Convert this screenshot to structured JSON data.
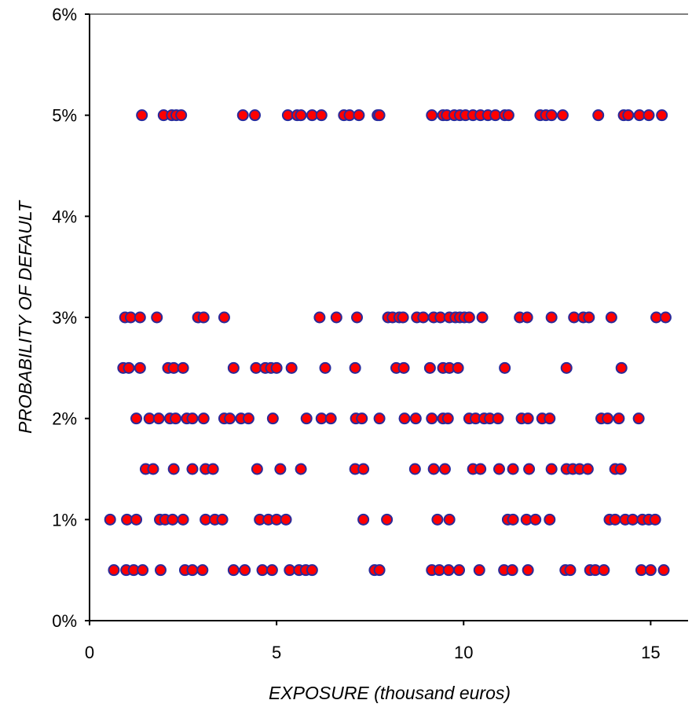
{
  "chart_data": {
    "type": "scatter",
    "title": "",
    "xlabel": "EXPOSURE (thousand euros)",
    "ylabel": "PROBABILITY OF DEFAULT",
    "xlim": [
      0,
      16
    ],
    "ylim": [
      0,
      6
    ],
    "x_ticks": [
      0,
      5,
      10,
      15
    ],
    "x_tick_labels": [
      "0",
      "5",
      "10",
      "15"
    ],
    "y_ticks": [
      0,
      1,
      2,
      3,
      4,
      5,
      6
    ],
    "y_tick_labels": [
      "0%",
      "1%",
      "2%",
      "3%",
      "4%",
      "5%",
      "6%"
    ],
    "grid": false,
    "legend": "none",
    "marker_fill": "#ff0000",
    "marker_edge": "#2a2a9a",
    "axis_color": "#000000",
    "top_border_color": "#808080",
    "series": [
      {
        "points": [
          [
            1.4,
            5
          ],
          [
            1.98,
            5
          ],
          [
            2.2,
            5
          ],
          [
            2.32,
            5
          ],
          [
            2.45,
            5
          ],
          [
            4.1,
            5
          ],
          [
            4.42,
            5
          ],
          [
            5.3,
            5
          ],
          [
            5.55,
            5
          ],
          [
            5.65,
            5
          ],
          [
            5.95,
            5
          ],
          [
            6.2,
            5
          ],
          [
            6.8,
            5
          ],
          [
            6.95,
            5
          ],
          [
            7.2,
            5
          ],
          [
            7.7,
            5
          ],
          [
            7.75,
            5
          ],
          [
            9.15,
            5
          ],
          [
            9.45,
            5
          ],
          [
            9.55,
            5
          ],
          [
            9.75,
            5
          ],
          [
            9.9,
            5
          ],
          [
            10.05,
            5
          ],
          [
            10.25,
            5
          ],
          [
            10.45,
            5
          ],
          [
            10.65,
            5
          ],
          [
            10.85,
            5
          ],
          [
            11.1,
            5
          ],
          [
            11.2,
            5
          ],
          [
            12.05,
            5
          ],
          [
            12.2,
            5
          ],
          [
            12.35,
            5
          ],
          [
            12.65,
            5
          ],
          [
            13.6,
            5
          ],
          [
            14.28,
            5
          ],
          [
            14.4,
            5
          ],
          [
            14.7,
            5
          ],
          [
            14.95,
            5
          ],
          [
            15.3,
            5
          ],
          [
            0.95,
            3
          ],
          [
            1.1,
            3
          ],
          [
            1.35,
            3
          ],
          [
            1.8,
            3
          ],
          [
            2.9,
            3
          ],
          [
            3.05,
            3
          ],
          [
            3.6,
            3
          ],
          [
            6.15,
            3
          ],
          [
            6.6,
            3
          ],
          [
            7.15,
            3
          ],
          [
            7.98,
            3
          ],
          [
            8.1,
            3
          ],
          [
            8.28,
            3
          ],
          [
            8.38,
            3
          ],
          [
            8.75,
            3
          ],
          [
            8.92,
            3
          ],
          [
            9.2,
            3
          ],
          [
            9.38,
            3
          ],
          [
            9.62,
            3
          ],
          [
            9.78,
            3
          ],
          [
            9.9,
            3
          ],
          [
            10.02,
            3
          ],
          [
            10.15,
            3
          ],
          [
            10.5,
            3
          ],
          [
            11.5,
            3
          ],
          [
            11.7,
            3
          ],
          [
            12.35,
            3
          ],
          [
            12.95,
            3
          ],
          [
            13.2,
            3
          ],
          [
            13.35,
            3
          ],
          [
            13.95,
            3
          ],
          [
            15.15,
            3
          ],
          [
            15.4,
            3
          ],
          [
            0.9,
            2.5
          ],
          [
            1.05,
            2.5
          ],
          [
            1.35,
            2.5
          ],
          [
            2.1,
            2.5
          ],
          [
            2.25,
            2.5
          ],
          [
            2.5,
            2.5
          ],
          [
            3.85,
            2.5
          ],
          [
            4.45,
            2.5
          ],
          [
            4.7,
            2.5
          ],
          [
            4.85,
            2.5
          ],
          [
            5.0,
            2.5
          ],
          [
            5.4,
            2.5
          ],
          [
            6.3,
            2.5
          ],
          [
            7.1,
            2.5
          ],
          [
            8.2,
            2.5
          ],
          [
            8.4,
            2.5
          ],
          [
            9.1,
            2.5
          ],
          [
            9.45,
            2.5
          ],
          [
            9.62,
            2.5
          ],
          [
            9.85,
            2.5
          ],
          [
            11.1,
            2.5
          ],
          [
            12.75,
            2.5
          ],
          [
            14.22,
            2.5
          ],
          [
            1.25,
            2
          ],
          [
            1.6,
            2
          ],
          [
            1.85,
            2
          ],
          [
            2.15,
            2
          ],
          [
            2.3,
            2
          ],
          [
            2.6,
            2
          ],
          [
            2.75,
            2
          ],
          [
            3.05,
            2
          ],
          [
            3.6,
            2
          ],
          [
            3.75,
            2
          ],
          [
            4.05,
            2
          ],
          [
            4.25,
            2
          ],
          [
            4.9,
            2
          ],
          [
            5.8,
            2
          ],
          [
            6.2,
            2
          ],
          [
            6.45,
            2
          ],
          [
            7.12,
            2
          ],
          [
            7.28,
            2
          ],
          [
            7.75,
            2
          ],
          [
            8.42,
            2
          ],
          [
            8.72,
            2
          ],
          [
            9.15,
            2
          ],
          [
            9.45,
            2
          ],
          [
            9.58,
            2
          ],
          [
            10.15,
            2
          ],
          [
            10.32,
            2
          ],
          [
            10.55,
            2
          ],
          [
            10.7,
            2
          ],
          [
            10.92,
            2
          ],
          [
            11.55,
            2
          ],
          [
            11.72,
            2
          ],
          [
            12.1,
            2
          ],
          [
            12.3,
            2
          ],
          [
            13.68,
            2
          ],
          [
            13.85,
            2
          ],
          [
            14.15,
            2
          ],
          [
            14.68,
            2
          ],
          [
            1.5,
            1.5
          ],
          [
            1.7,
            1.5
          ],
          [
            2.25,
            1.5
          ],
          [
            2.75,
            1.5
          ],
          [
            3.1,
            1.5
          ],
          [
            3.3,
            1.5
          ],
          [
            4.48,
            1.5
          ],
          [
            5.1,
            1.5
          ],
          [
            5.65,
            1.5
          ],
          [
            7.1,
            1.5
          ],
          [
            7.32,
            1.5
          ],
          [
            8.7,
            1.5
          ],
          [
            9.2,
            1.5
          ],
          [
            9.5,
            1.5
          ],
          [
            10.25,
            1.5
          ],
          [
            10.45,
            1.5
          ],
          [
            10.95,
            1.5
          ],
          [
            11.32,
            1.5
          ],
          [
            11.75,
            1.5
          ],
          [
            12.35,
            1.5
          ],
          [
            12.75,
            1.5
          ],
          [
            12.92,
            1.5
          ],
          [
            13.1,
            1.5
          ],
          [
            13.32,
            1.5
          ],
          [
            14.05,
            1.5
          ],
          [
            14.2,
            1.5
          ],
          [
            0.55,
            1
          ],
          [
            1.0,
            1
          ],
          [
            1.25,
            1
          ],
          [
            1.88,
            1
          ],
          [
            2.02,
            1
          ],
          [
            2.22,
            1
          ],
          [
            2.5,
            1
          ],
          [
            3.1,
            1
          ],
          [
            3.35,
            1
          ],
          [
            3.55,
            1
          ],
          [
            4.55,
            1
          ],
          [
            4.78,
            1
          ],
          [
            5.0,
            1
          ],
          [
            5.25,
            1
          ],
          [
            7.32,
            1
          ],
          [
            7.95,
            1
          ],
          [
            9.3,
            1
          ],
          [
            9.62,
            1
          ],
          [
            11.18,
            1
          ],
          [
            11.32,
            1
          ],
          [
            11.68,
            1
          ],
          [
            11.92,
            1
          ],
          [
            12.3,
            1
          ],
          [
            13.9,
            1
          ],
          [
            14.05,
            1
          ],
          [
            14.32,
            1
          ],
          [
            14.52,
            1
          ],
          [
            14.78,
            1
          ],
          [
            14.95,
            1
          ],
          [
            15.12,
            1
          ],
          [
            0.65,
            0.5
          ],
          [
            0.98,
            0.5
          ],
          [
            1.18,
            0.5
          ],
          [
            1.42,
            0.5
          ],
          [
            1.9,
            0.5
          ],
          [
            2.55,
            0.5
          ],
          [
            2.75,
            0.5
          ],
          [
            3.02,
            0.5
          ],
          [
            3.85,
            0.5
          ],
          [
            4.15,
            0.5
          ],
          [
            4.62,
            0.5
          ],
          [
            4.88,
            0.5
          ],
          [
            5.35,
            0.5
          ],
          [
            5.6,
            0.5
          ],
          [
            5.78,
            0.5
          ],
          [
            5.95,
            0.5
          ],
          [
            7.62,
            0.5
          ],
          [
            7.75,
            0.5
          ],
          [
            9.15,
            0.5
          ],
          [
            9.35,
            0.5
          ],
          [
            9.6,
            0.5
          ],
          [
            9.88,
            0.5
          ],
          [
            10.42,
            0.5
          ],
          [
            11.08,
            0.5
          ],
          [
            11.3,
            0.5
          ],
          [
            11.72,
            0.5
          ],
          [
            12.72,
            0.5
          ],
          [
            12.85,
            0.5
          ],
          [
            13.38,
            0.5
          ],
          [
            13.52,
            0.5
          ],
          [
            13.75,
            0.5
          ],
          [
            14.75,
            0.5
          ],
          [
            15.0,
            0.5
          ],
          [
            15.35,
            0.5
          ]
        ]
      }
    ]
  }
}
